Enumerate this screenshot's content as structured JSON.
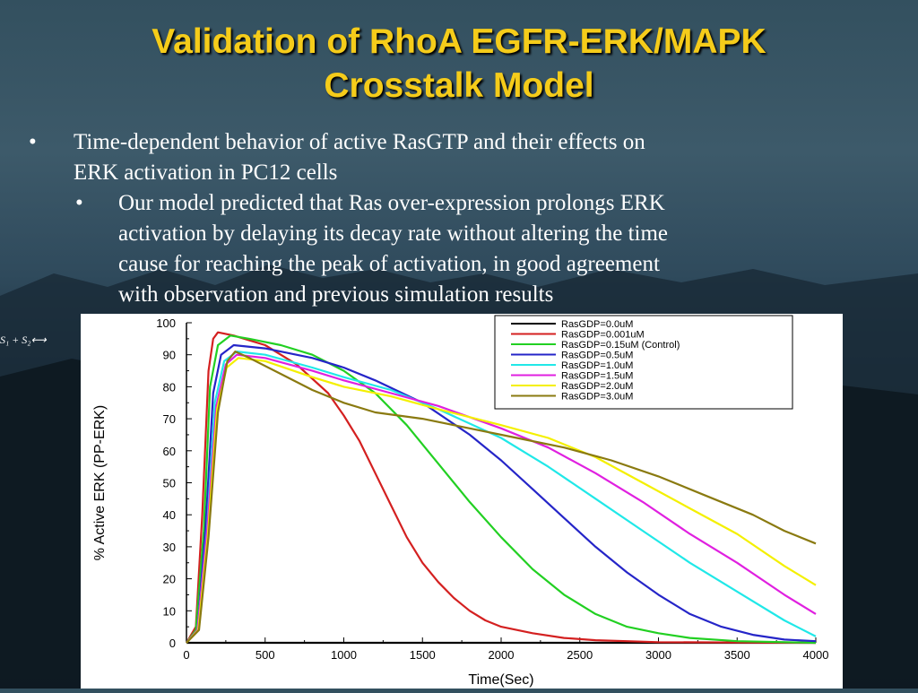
{
  "slide": {
    "title_line1": "Validation of RhoA EGFR-ERK/MAPK",
    "title_line2": "Crosstalk Model",
    "bullet1_marker": "•",
    "bullet1_line1": "Time-dependent behavior of active RasGTP and their effects on",
    "bullet1_line2": "ERK activation in PC12 cells",
    "bullet2_marker": "•",
    "bullet2_line1": "Our model predicted that Ras over-expression prolongs ERK",
    "bullet2_line2": "activation by delaying its decay rate without altering the time",
    "bullet2_line3": "cause for reaching the peak of activation, in good agreement",
    "bullet2_line4": "with observation and previous simulation results",
    "formula": "S₁ + S₂⟷",
    "title_color": "#f5cc1a"
  },
  "chart_data": {
    "type": "line",
    "xlabel": "Time(Sec)",
    "ylabel": "% Active ERK (PP-ERK)",
    "xlim": [
      0,
      4000
    ],
    "ylim": [
      0,
      100
    ],
    "xticks": [
      0,
      500,
      1000,
      1500,
      2000,
      2500,
      3000,
      3500,
      4000
    ],
    "yticks": [
      0,
      10,
      20,
      30,
      40,
      50,
      60,
      70,
      80,
      90,
      100
    ],
    "legend_position": "top-right",
    "grid": false,
    "series": [
      {
        "name": "RasGDP=0.0uM",
        "color": "#000000",
        "points": [
          [
            0,
            0
          ],
          [
            4000,
            0
          ]
        ]
      },
      {
        "name": "RasGDP=0.001uM",
        "color": "#d42020",
        "points": [
          [
            0,
            0
          ],
          [
            60,
            5
          ],
          [
            100,
            40
          ],
          [
            140,
            85
          ],
          [
            170,
            95
          ],
          [
            200,
            97
          ],
          [
            300,
            96
          ],
          [
            500,
            93
          ],
          [
            700,
            87
          ],
          [
            900,
            78
          ],
          [
            1000,
            71
          ],
          [
            1100,
            63
          ],
          [
            1200,
            53
          ],
          [
            1300,
            43
          ],
          [
            1400,
            33
          ],
          [
            1500,
            25
          ],
          [
            1600,
            19
          ],
          [
            1700,
            14
          ],
          [
            1800,
            10
          ],
          [
            1900,
            7
          ],
          [
            2000,
            5
          ],
          [
            2200,
            3
          ],
          [
            2400,
            1.5
          ],
          [
            2600,
            0.8
          ],
          [
            3000,
            0.2
          ],
          [
            4000,
            0
          ]
        ]
      },
      {
        "name": "RasGDP=0.15uM (Control)",
        "color": "#22d022",
        "points": [
          [
            0,
            0
          ],
          [
            60,
            4
          ],
          [
            110,
            35
          ],
          [
            150,
            80
          ],
          [
            200,
            93
          ],
          [
            280,
            96
          ],
          [
            400,
            95
          ],
          [
            600,
            93
          ],
          [
            800,
            90
          ],
          [
            1000,
            85
          ],
          [
            1200,
            78
          ],
          [
            1400,
            68
          ],
          [
            1600,
            56
          ],
          [
            1800,
            44
          ],
          [
            2000,
            33
          ],
          [
            2200,
            23
          ],
          [
            2400,
            15
          ],
          [
            2600,
            9
          ],
          [
            2800,
            5
          ],
          [
            3000,
            3
          ],
          [
            3200,
            1.5
          ],
          [
            3500,
            0.5
          ],
          [
            4000,
            0
          ]
        ]
      },
      {
        "name": "RasGDP=0.5uM",
        "color": "#2525c8",
        "points": [
          [
            0,
            0
          ],
          [
            70,
            4
          ],
          [
            120,
            35
          ],
          [
            170,
            78
          ],
          [
            220,
            90
          ],
          [
            300,
            93
          ],
          [
            500,
            92
          ],
          [
            800,
            89
          ],
          [
            1000,
            86
          ],
          [
            1200,
            82
          ],
          [
            1500,
            75
          ],
          [
            1800,
            65
          ],
          [
            2000,
            57
          ],
          [
            2200,
            48
          ],
          [
            2400,
            39
          ],
          [
            2600,
            30
          ],
          [
            2800,
            22
          ],
          [
            3000,
            15
          ],
          [
            3200,
            9
          ],
          [
            3400,
            5
          ],
          [
            3600,
            2.5
          ],
          [
            3800,
            1
          ],
          [
            4000,
            0.5
          ]
        ]
      },
      {
        "name": "RasGDP=1.0uM",
        "color": "#20e8e8",
        "points": [
          [
            0,
            0
          ],
          [
            70,
            4
          ],
          [
            130,
            35
          ],
          [
            180,
            75
          ],
          [
            240,
            88
          ],
          [
            320,
            91
          ],
          [
            500,
            90
          ],
          [
            800,
            86
          ],
          [
            1000,
            83
          ],
          [
            1300,
            79
          ],
          [
            1600,
            73
          ],
          [
            2000,
            64
          ],
          [
            2300,
            55
          ],
          [
            2600,
            45
          ],
          [
            2900,
            35
          ],
          [
            3200,
            25
          ],
          [
            3500,
            16
          ],
          [
            3800,
            7
          ],
          [
            4000,
            2
          ]
        ]
      },
      {
        "name": "RasGDP=1.5uM",
        "color": "#e020e0",
        "points": [
          [
            0,
            0
          ],
          [
            70,
            4
          ],
          [
            130,
            34
          ],
          [
            190,
            74
          ],
          [
            250,
            87
          ],
          [
            320,
            90
          ],
          [
            500,
            89
          ],
          [
            800,
            85
          ],
          [
            1000,
            82
          ],
          [
            1300,
            78
          ],
          [
            1600,
            74
          ],
          [
            2000,
            67
          ],
          [
            2300,
            61
          ],
          [
            2600,
            53
          ],
          [
            2900,
            44
          ],
          [
            3200,
            34
          ],
          [
            3500,
            25
          ],
          [
            3800,
            15
          ],
          [
            4000,
            9
          ]
        ]
      },
      {
        "name": "RasGDP=2.0uM",
        "color": "#f4f000",
        "points": [
          [
            0,
            0
          ],
          [
            75,
            4
          ],
          [
            135,
            33
          ],
          [
            195,
            73
          ],
          [
            255,
            86
          ],
          [
            330,
            89
          ],
          [
            500,
            88
          ],
          [
            800,
            83
          ],
          [
            1000,
            80
          ],
          [
            1300,
            77
          ],
          [
            1600,
            73
          ],
          [
            2000,
            68
          ],
          [
            2300,
            64
          ],
          [
            2600,
            58
          ],
          [
            2900,
            50
          ],
          [
            3200,
            42
          ],
          [
            3500,
            34
          ],
          [
            3800,
            24
          ],
          [
            4000,
            18
          ]
        ]
      },
      {
        "name": "RasGDP=3.0uM",
        "color": "#8a7a10",
        "points": [
          [
            0,
            0
          ],
          [
            80,
            4
          ],
          [
            140,
            33
          ],
          [
            200,
            72
          ],
          [
            260,
            88
          ],
          [
            310,
            91
          ],
          [
            400,
            89
          ],
          [
            600,
            84
          ],
          [
            800,
            79
          ],
          [
            1000,
            75
          ],
          [
            1200,
            72
          ],
          [
            1500,
            70
          ],
          [
            1800,
            67
          ],
          [
            2100,
            64
          ],
          [
            2400,
            61
          ],
          [
            2700,
            57
          ],
          [
            3000,
            52
          ],
          [
            3300,
            46
          ],
          [
            3600,
            40
          ],
          [
            3800,
            35
          ],
          [
            4000,
            31
          ]
        ]
      }
    ]
  }
}
